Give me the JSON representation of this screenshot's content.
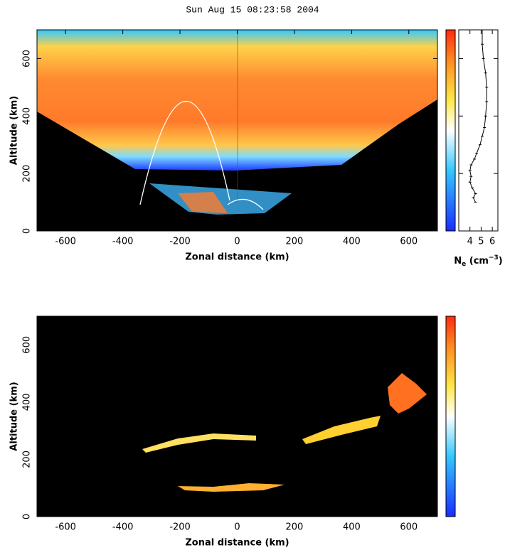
{
  "chart_data": [
    {
      "type": "heatmap",
      "title": "Sun Aug 15 08:23:58 2004",
      "x_label": "Zonal distance (km)",
      "y_label": "Altitude (km)",
      "xlim": [
        -700,
        700
      ],
      "xticks": [
        -600,
        -400,
        -200,
        0,
        200,
        400,
        600
      ],
      "ylim": [
        0,
        700
      ],
      "yticks": [
        0,
        200,
        400,
        600
      ]
    },
    {
      "type": "profile",
      "x_label_parts": [
        "N",
        "e",
        " (cm",
        "−3",
        ")"
      ],
      "xlim": [
        3,
        6.5
      ],
      "xticks": [
        4,
        5,
        6
      ],
      "ylim": [
        0,
        700
      ],
      "yticks": [
        0,
        200,
        400,
        600
      ],
      "y": [
        100,
        115,
        130,
        150,
        170,
        190,
        210,
        230,
        250,
        270,
        300,
        330,
        360,
        400,
        450,
        500,
        550,
        600,
        650,
        700
      ],
      "values": [
        4.5,
        4.3,
        4.5,
        4.2,
        4.0,
        4.1,
        4.0,
        4.1,
        4.4,
        4.6,
        4.9,
        5.1,
        5.3,
        5.4,
        5.5,
        5.5,
        5.4,
        5.2,
        5.1,
        5.1
      ]
    },
    {
      "type": "heatmap",
      "x_label": "Zonal distance (km)",
      "y_label": "Altitude (km)",
      "xlim": [
        -700,
        700
      ],
      "xticks": [
        -600,
        -400,
        -200,
        0,
        200,
        400,
        600
      ],
      "ylim": [
        0,
        700
      ],
      "yticks": [
        0,
        200,
        400,
        600
      ]
    }
  ]
}
